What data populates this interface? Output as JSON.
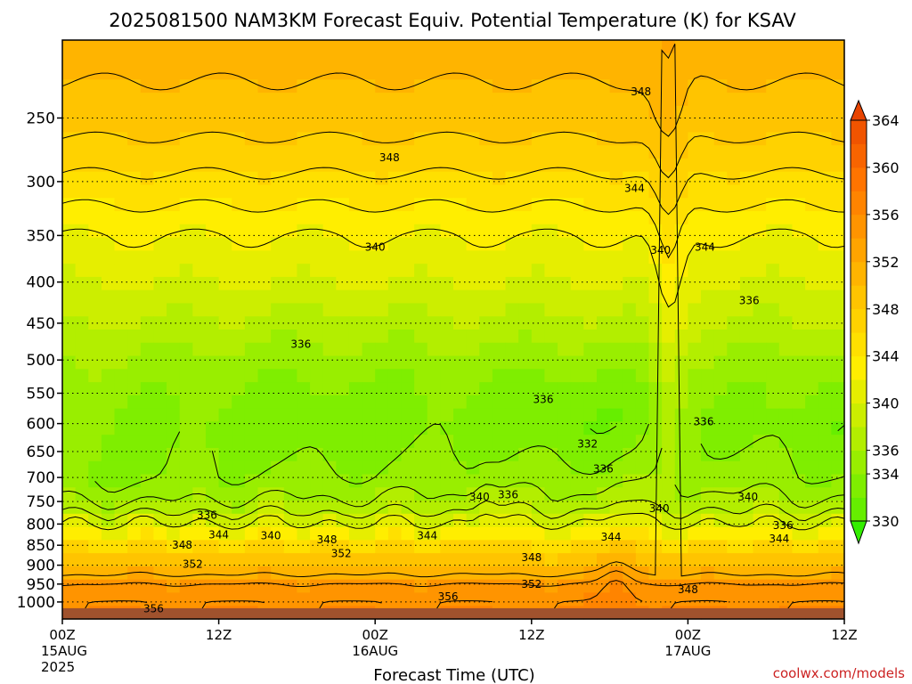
{
  "chart_data": {
    "type": "heatmap",
    "title": "2025081500 NAM3KM Forecast Equiv. Potential Temperature (K) for KSAV",
    "xlabel": "Forecast Time (UTC)",
    "ylabel": "",
    "credit": "coolwx.com/models",
    "x_ticks": [
      {
        "hour": 0,
        "label": "00Z",
        "sub1": "15AUG",
        "sub2": "2025"
      },
      {
        "hour": 12,
        "label": "12Z",
        "sub1": "",
        "sub2": ""
      },
      {
        "hour": 24,
        "label": "00Z",
        "sub1": "16AUG",
        "sub2": ""
      },
      {
        "hour": 36,
        "label": "12Z",
        "sub1": "",
        "sub2": ""
      },
      {
        "hour": 48,
        "label": "00Z",
        "sub1": "17AUG",
        "sub2": ""
      },
      {
        "hour": 60,
        "label": "12Z",
        "sub1": "",
        "sub2": ""
      }
    ],
    "xlim": [
      0,
      60
    ],
    "y_scale": "log-pressure, inverted",
    "ylim": [
      1050,
      200
    ],
    "y_ticks": [
      250,
      300,
      350,
      400,
      450,
      500,
      550,
      600,
      650,
      700,
      750,
      800,
      850,
      900,
      950,
      1000
    ],
    "grid": "dotted horizontal lines at y ticks",
    "colorbar": {
      "position": "right",
      "extend": "both",
      "levels": [
        330,
        332,
        334,
        336,
        338,
        340,
        342,
        344,
        346,
        348,
        350,
        352,
        354,
        356,
        358,
        360,
        362,
        364
      ],
      "tick_labels": [
        330,
        334,
        336,
        340,
        344,
        348,
        352,
        356,
        360,
        364
      ],
      "colors": [
        "#66ee00",
        "#7fee00",
        "#99ee00",
        "#b3ee00",
        "#ccee00",
        "#e6ee00",
        "#ffee00",
        "#ffe000",
        "#ffd200",
        "#ffc400",
        "#ffb400",
        "#ffa400",
        "#ff9400",
        "#ff8400",
        "#ff7400",
        "#f86400",
        "#f05400"
      ],
      "under_color": "#33ee00",
      "over_color": "#e84400"
    },
    "ground_color": "#a0522d",
    "profile": {
      "pressure": [
        200,
        250,
        300,
        350,
        400,
        450,
        500,
        550,
        600,
        650,
        700,
        750,
        800,
        825,
        850,
        875,
        900,
        925,
        950,
        975,
        1000,
        1050
      ],
      "theta_e": [
        351,
        349,
        345.5,
        342,
        340,
        338,
        336,
        335,
        334.5,
        335,
        335.5,
        337,
        340,
        343,
        346,
        348,
        350,
        352,
        354,
        355,
        356,
        356
      ]
    },
    "contour_labels": [
      {
        "value": "348",
        "hour": 44.4,
        "p": 232
      },
      {
        "value": "348",
        "hour": 25.1,
        "p": 280
      },
      {
        "value": "344",
        "hour": 43.9,
        "p": 306
      },
      {
        "value": "340",
        "hour": 24.0,
        "p": 362
      },
      {
        "value": "340",
        "hour": 45.9,
        "p": 365
      },
      {
        "value": "344",
        "hour": 49.3,
        "p": 362
      },
      {
        "value": "336",
        "hour": 52.7,
        "p": 422
      },
      {
        "value": "336",
        "hour": 18.3,
        "p": 478
      },
      {
        "value": "336",
        "hour": 36.9,
        "p": 560
      },
      {
        "value": "336",
        "hour": 49.2,
        "p": 597
      },
      {
        "value": "332",
        "hour": 40.3,
        "p": 636
      },
      {
        "value": "336",
        "hour": 41.5,
        "p": 683
      },
      {
        "value": "340",
        "hour": 32.0,
        "p": 740
      },
      {
        "value": "336",
        "hour": 34.2,
        "p": 736
      },
      {
        "value": "340",
        "hour": 52.6,
        "p": 740
      },
      {
        "value": "336",
        "hour": 11.1,
        "p": 780
      },
      {
        "value": "340",
        "hour": 45.8,
        "p": 765
      },
      {
        "value": "336",
        "hour": 55.3,
        "p": 803
      },
      {
        "value": "344",
        "hour": 12.0,
        "p": 825
      },
      {
        "value": "340",
        "hour": 16.0,
        "p": 827
      },
      {
        "value": "344",
        "hour": 55.0,
        "p": 835
      },
      {
        "value": "348",
        "hour": 20.3,
        "p": 837
      },
      {
        "value": "344",
        "hour": 28.0,
        "p": 827
      },
      {
        "value": "344",
        "hour": 42.1,
        "p": 830
      },
      {
        "value": "348",
        "hour": 9.2,
        "p": 850
      },
      {
        "value": "352",
        "hour": 21.4,
        "p": 870
      },
      {
        "value": "352",
        "hour": 10.0,
        "p": 898
      },
      {
        "value": "348",
        "hour": 36.0,
        "p": 880
      },
      {
        "value": "352",
        "hour": 36.0,
        "p": 950
      },
      {
        "value": "348",
        "hour": 48.0,
        "p": 965
      },
      {
        "value": "356",
        "hour": 29.6,
        "p": 985
      },
      {
        "value": "356",
        "hour": 7.0,
        "p": 1020
      }
    ]
  }
}
